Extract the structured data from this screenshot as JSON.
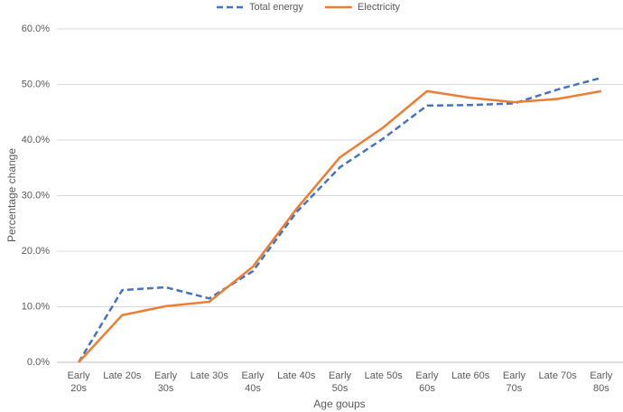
{
  "chart_data": {
    "type": "line",
    "x_label": "Age goups",
    "y_label": "Percentage change",
    "categories": [
      "Early 20s",
      "Late 20s",
      "Early 30s",
      "Late 30s",
      "Early 40s",
      "Late 40s",
      "Early 50s",
      "Late 50s",
      "Early 60s",
      "Late 60s",
      "Early 70s",
      "Late 70s",
      "Early 80s"
    ],
    "series": [
      {
        "name": "Total energy",
        "color": "#4472c4",
        "dash": true,
        "values": [
          0,
          13.0,
          13.5,
          11.5,
          16.4,
          27.0,
          35.1,
          40.3,
          46.2,
          46.3,
          46.6,
          49.1,
          51.2
        ]
      },
      {
        "name": "Electricity",
        "color": "#ed7d31",
        "dash": false,
        "values": [
          0,
          8.5,
          10.1,
          10.9,
          17.2,
          27.6,
          36.9,
          42.3,
          48.8,
          47.6,
          46.8,
          47.4,
          48.8
        ]
      }
    ],
    "ylim": [
      0,
      60
    ],
    "yticks": [
      {
        "value": 0,
        "label": "0.0%"
      },
      {
        "value": 10,
        "label": "10.0%"
      },
      {
        "value": 20,
        "label": "20.0%"
      },
      {
        "value": 30,
        "label": "30.0%"
      },
      {
        "value": 40,
        "label": "40.0%"
      },
      {
        "value": 50,
        "label": "50.0%"
      },
      {
        "value": 60,
        "label": "60.0%"
      }
    ],
    "grid": true,
    "legend": "top"
  }
}
